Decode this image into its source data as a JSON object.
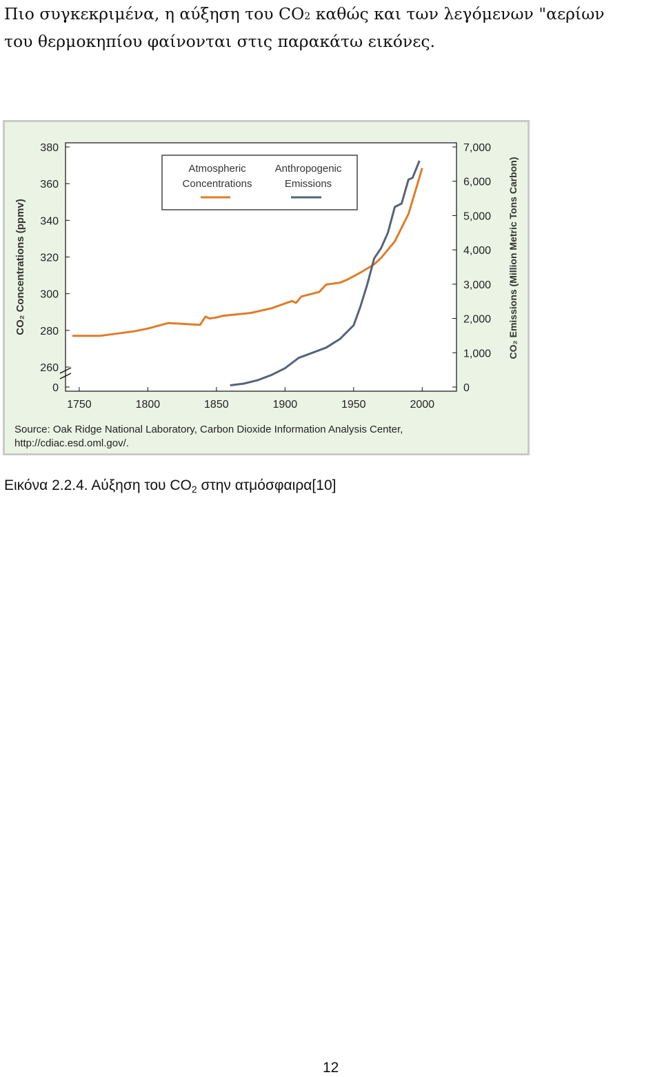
{
  "paragraph": {
    "line1_a": "Πιο συγκεκριμένα, η αύξηση του CO",
    "line1_sub": "2",
    "line1_b": " καθώς και των λεγόμενων \"αερίων",
    "line2": "του θερμοκηπίου φαίνονται στις παρακάτω εικόνες."
  },
  "caption": {
    "prefix": "Εικόνα 2.2.4. Αύξηση του CO",
    "sub": "2",
    "suffix": " στην ατμόσφαιρα[10]"
  },
  "page_number": "12",
  "chart_data": {
    "type": "line",
    "source_line1": "Source: Oak Ridge National Laboratory, Carbon Dioxide Information Analysis Center,",
    "source_line2": "http://cdiac.esd.oml.gov/.",
    "ylabel_left": "CO₂ Concentrations (ppmv)",
    "ylabel_right": "CO₂ Emissions (Million Metric Tons Carbon)",
    "x_ticks": [
      "1750",
      "1800",
      "1850",
      "1900",
      "1950",
      "2000"
    ],
    "x_range": [
      1740,
      2025
    ],
    "y_left_ticks": [
      "0",
      "260",
      "280",
      "300",
      "320",
      "340",
      "360",
      "380"
    ],
    "y_left_range": [
      250,
      380
    ],
    "y_left_break": true,
    "y_right_ticks": [
      "0",
      "1,000",
      "2,000",
      "3,000",
      "4,000",
      "5,000",
      "6,000",
      "7,000"
    ],
    "y_right_range": [
      0,
      7000
    ],
    "legend_position": "top-left",
    "colors": {
      "concentrations": "#e07b28",
      "emissions": "#56627a",
      "background": "#ebf3e4"
    },
    "series": [
      {
        "name": "Atmospheric Concentrations",
        "axis": "left",
        "points": [
          [
            1745,
            277
          ],
          [
            1765,
            277
          ],
          [
            1790,
            279.5
          ],
          [
            1800,
            281
          ],
          [
            1815,
            284
          ],
          [
            1838,
            283
          ],
          [
            1842,
            287.5
          ],
          [
            1845,
            286.5
          ],
          [
            1850,
            287
          ],
          [
            1855,
            288
          ],
          [
            1875,
            289.5
          ],
          [
            1890,
            292
          ],
          [
            1905,
            296
          ],
          [
            1908,
            295
          ],
          [
            1912,
            298.5
          ],
          [
            1920,
            300
          ],
          [
            1925,
            301
          ],
          [
            1930,
            305
          ],
          [
            1940,
            306
          ],
          [
            1945,
            307.5
          ],
          [
            1955,
            311.5
          ],
          [
            1965,
            316
          ],
          [
            1970,
            319.5
          ],
          [
            1980,
            328.5
          ],
          [
            1990,
            343.5
          ],
          [
            2000,
            368.5
          ]
        ]
      },
      {
        "name": "Anthropogenic Emissions",
        "axis": "right",
        "points": [
          [
            1860,
            50
          ],
          [
            1870,
            100
          ],
          [
            1880,
            200
          ],
          [
            1890,
            350
          ],
          [
            1900,
            550
          ],
          [
            1910,
            850
          ],
          [
            1920,
            1000
          ],
          [
            1930,
            1150
          ],
          [
            1940,
            1400
          ],
          [
            1950,
            1800
          ],
          [
            1955,
            2350
          ],
          [
            1960,
            3000
          ],
          [
            1965,
            3750
          ],
          [
            1970,
            4050
          ],
          [
            1975,
            4500
          ],
          [
            1980,
            5250
          ],
          [
            1985,
            5350
          ],
          [
            1990,
            6050
          ],
          [
            1993,
            6100
          ],
          [
            1998,
            6600
          ]
        ]
      }
    ]
  }
}
